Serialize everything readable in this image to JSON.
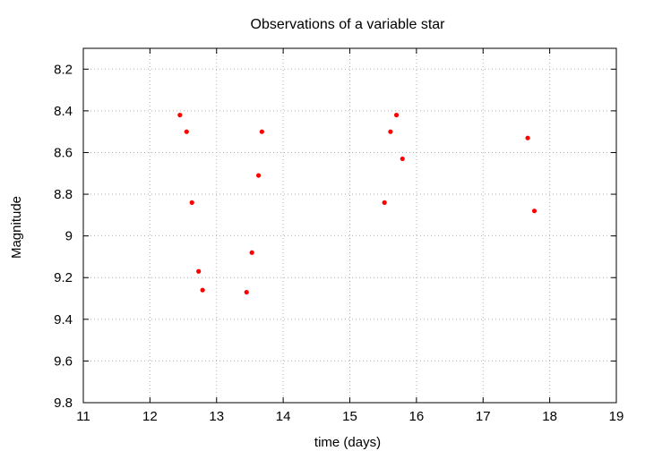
{
  "chart_data": {
    "type": "scatter",
    "title": "Observations of a variable star",
    "xlabel": "time (days)",
    "ylabel": "Magnitude",
    "xlim": [
      11,
      19
    ],
    "ylim": [
      8.1,
      9.8
    ],
    "y_inverted": true,
    "grid": true,
    "x_ticks": [
      "11",
      "12",
      "13",
      "14",
      "15",
      "16",
      "17",
      "18",
      "19"
    ],
    "y_ticks": [
      "8.2",
      "8.4",
      "8.6",
      "8.8",
      "9",
      "9.2",
      "9.4",
      "9.6",
      "9.8"
    ],
    "point_color": "#ff0000",
    "points": [
      {
        "x": 12.45,
        "y": 8.42
      },
      {
        "x": 12.55,
        "y": 8.5
      },
      {
        "x": 12.63,
        "y": 8.84
      },
      {
        "x": 12.73,
        "y": 9.17
      },
      {
        "x": 12.79,
        "y": 9.26
      },
      {
        "x": 13.45,
        "y": 9.27
      },
      {
        "x": 13.53,
        "y": 9.08
      },
      {
        "x": 13.63,
        "y": 8.71
      },
      {
        "x": 13.68,
        "y": 8.5
      },
      {
        "x": 15.52,
        "y": 8.84
      },
      {
        "x": 15.61,
        "y": 8.5
      },
      {
        "x": 15.7,
        "y": 8.42
      },
      {
        "x": 15.79,
        "y": 8.63
      },
      {
        "x": 17.67,
        "y": 8.53
      },
      {
        "x": 17.77,
        "y": 8.88
      }
    ]
  }
}
